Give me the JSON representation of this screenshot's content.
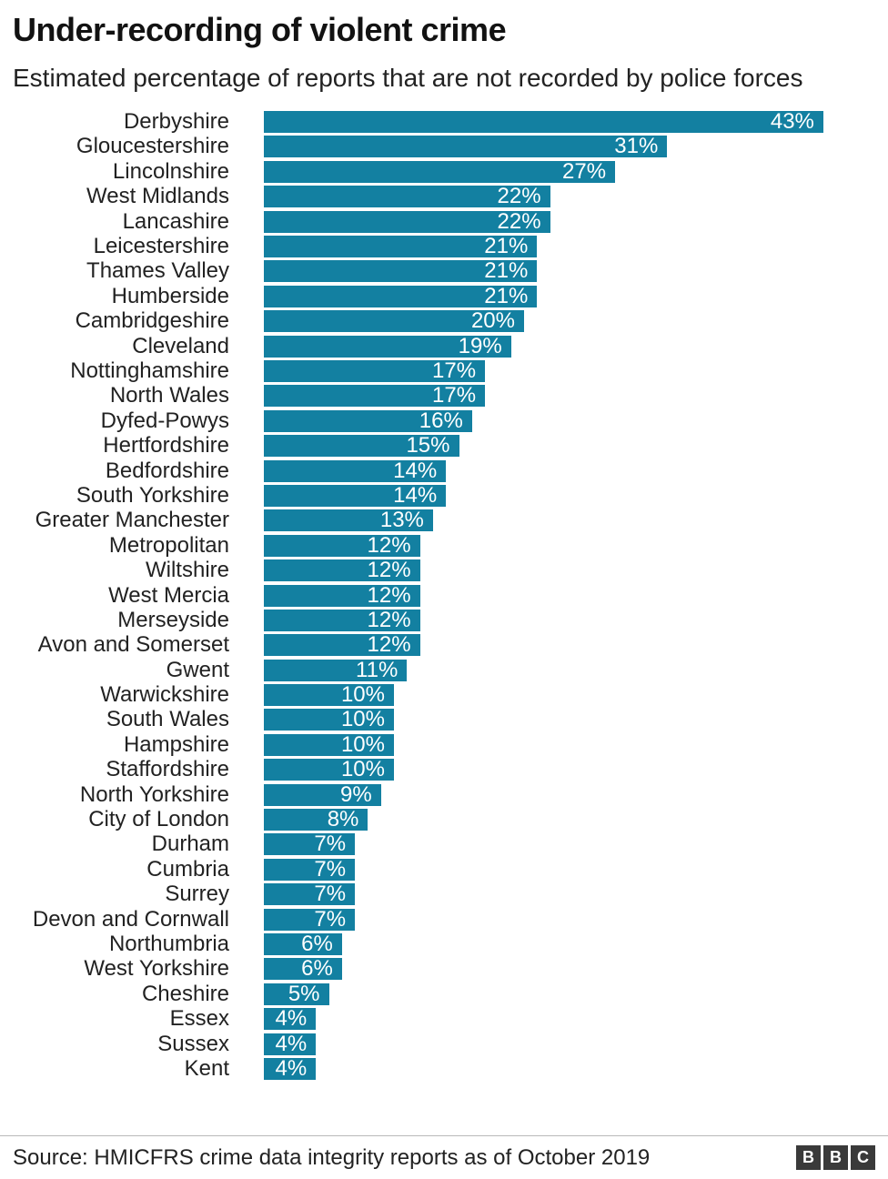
{
  "header": {
    "title": "Under-recording of violent crime",
    "subtitle": "Estimated percentage of reports that are not recorded by police forces"
  },
  "chart_data": {
    "type": "bar",
    "orientation": "horizontal",
    "title": "Under-recording of violent crime",
    "subtitle": "Estimated percentage of reports that are not recorded by police forces",
    "xlabel": "",
    "ylabel": "",
    "xlim": [
      0,
      47.5
    ],
    "grid": false,
    "legend": "none",
    "value_suffix": "%",
    "bar_color": "#1380A1",
    "value_label_style": "inside-end-white",
    "categories": [
      "Derbyshire",
      "Gloucestershire",
      "Lincolnshire",
      "West Midlands",
      "Lancashire",
      "Leicestershire",
      "Thames Valley",
      "Humberside",
      "Cambridgeshire",
      "Cleveland",
      "Nottinghamshire",
      "North Wales",
      "Dyfed-Powys",
      "Hertfordshire",
      "Bedfordshire",
      "South Yorkshire",
      "Greater Manchester",
      "Metropolitan",
      "Wiltshire",
      "West Mercia",
      "Merseyside",
      "Avon and Somerset",
      "Gwent",
      "Warwickshire",
      "South Wales",
      "Hampshire",
      "Staffordshire",
      "North Yorkshire",
      "City of London",
      "Durham",
      "Cumbria",
      "Surrey",
      "Devon and Cornwall",
      "Northumbria",
      "West Yorkshire",
      "Cheshire",
      "Essex",
      "Sussex",
      "Kent"
    ],
    "values": [
      43,
      31,
      27,
      22,
      22,
      21,
      21,
      21,
      20,
      19,
      17,
      17,
      16,
      15,
      14,
      14,
      13,
      12,
      12,
      12,
      12,
      12,
      11,
      10,
      10,
      10,
      10,
      9,
      8,
      7,
      7,
      7,
      7,
      6,
      6,
      5,
      4,
      4,
      4
    ]
  },
  "footer": {
    "source": "Source: HMICFRS crime data integrity reports as of October 2019",
    "logo": [
      "B",
      "B",
      "C"
    ]
  }
}
